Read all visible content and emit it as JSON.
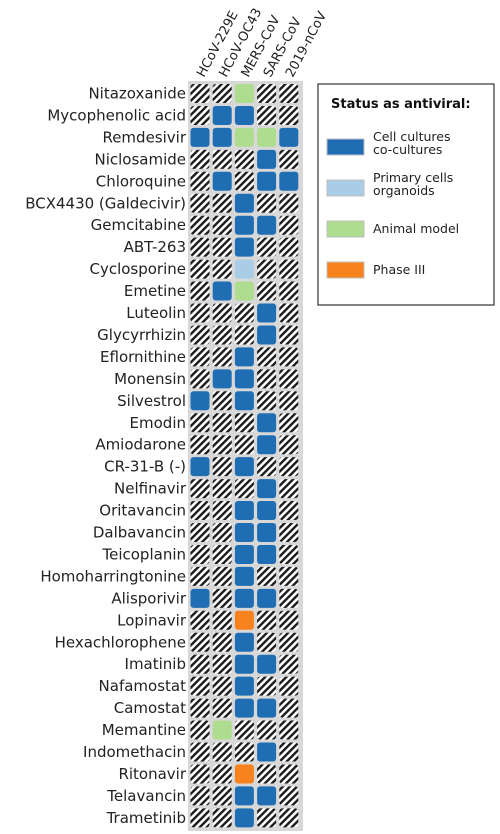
{
  "chart_data": {
    "type": "heatmap",
    "columns": [
      "HCoV-229E",
      "HCoV-OC43",
      "MERS-CoV",
      "SARS-CoV",
      "2019-nCoV"
    ],
    "rows": [
      {
        "name": "Nitazoxanide",
        "cells": [
          "untested",
          "untested",
          "animal",
          "untested",
          "untested"
        ]
      },
      {
        "name": "Mycophenolic acid",
        "cells": [
          "untested",
          "cell",
          "cell",
          "untested",
          "untested"
        ]
      },
      {
        "name": "Remdesivir",
        "cells": [
          "cell",
          "cell",
          "animal",
          "animal",
          "cell"
        ]
      },
      {
        "name": "Niclosamide",
        "cells": [
          "untested",
          "untested",
          "untested",
          "cell",
          "untested"
        ]
      },
      {
        "name": "Chloroquine",
        "cells": [
          "untested",
          "cell",
          "untested",
          "cell",
          "cell"
        ]
      },
      {
        "name": "BCX4430 (Galdecivir)",
        "cells": [
          "untested",
          "untested",
          "cell",
          "untested",
          "untested"
        ]
      },
      {
        "name": "Gemcitabine",
        "cells": [
          "untested",
          "untested",
          "cell",
          "cell",
          "untested"
        ]
      },
      {
        "name": "ABT-263",
        "cells": [
          "untested",
          "untested",
          "cell",
          "untested",
          "untested"
        ]
      },
      {
        "name": "Cyclosporine",
        "cells": [
          "untested",
          "untested",
          "primary",
          "untested",
          "untested"
        ]
      },
      {
        "name": "Emetine",
        "cells": [
          "untested",
          "cell",
          "animal",
          "untested",
          "untested"
        ]
      },
      {
        "name": "Luteolin",
        "cells": [
          "untested",
          "untested",
          "untested",
          "cell",
          "untested"
        ]
      },
      {
        "name": "Glycyrrhizin",
        "cells": [
          "untested",
          "untested",
          "untested",
          "cell",
          "untested"
        ]
      },
      {
        "name": "Eflornithine",
        "cells": [
          "untested",
          "untested",
          "cell",
          "untested",
          "untested"
        ]
      },
      {
        "name": "Monensin",
        "cells": [
          "untested",
          "cell",
          "cell",
          "untested",
          "untested"
        ]
      },
      {
        "name": "Silvestrol",
        "cells": [
          "cell",
          "untested",
          "cell",
          "untested",
          "untested"
        ]
      },
      {
        "name": "Emodin",
        "cells": [
          "untested",
          "untested",
          "untested",
          "cell",
          "untested"
        ]
      },
      {
        "name": "Amiodarone",
        "cells": [
          "untested",
          "untested",
          "untested",
          "cell",
          "untested"
        ]
      },
      {
        "name": "CR-31-B (-)",
        "cells": [
          "cell",
          "untested",
          "cell",
          "untested",
          "untested"
        ]
      },
      {
        "name": "Nelfinavir",
        "cells": [
          "untested",
          "untested",
          "untested",
          "cell",
          "untested"
        ]
      },
      {
        "name": "Oritavancin",
        "cells": [
          "untested",
          "untested",
          "cell",
          "cell",
          "untested"
        ]
      },
      {
        "name": "Dalbavancin",
        "cells": [
          "untested",
          "untested",
          "cell",
          "cell",
          "untested"
        ]
      },
      {
        "name": "Teicoplanin",
        "cells": [
          "untested",
          "untested",
          "cell",
          "cell",
          "untested"
        ]
      },
      {
        "name": "Homoharringtonine",
        "cells": [
          "untested",
          "untested",
          "cell",
          "untested",
          "untested"
        ]
      },
      {
        "name": "Alisporivir",
        "cells": [
          "cell",
          "untested",
          "cell",
          "cell",
          "untested"
        ]
      },
      {
        "name": "Lopinavir",
        "cells": [
          "untested",
          "untested",
          "phase3",
          "untested",
          "untested"
        ]
      },
      {
        "name": "Hexachlorophene",
        "cells": [
          "untested",
          "untested",
          "cell",
          "untested",
          "untested"
        ]
      },
      {
        "name": "Imatinib",
        "cells": [
          "untested",
          "untested",
          "cell",
          "cell",
          "untested"
        ]
      },
      {
        "name": "Nafamostat",
        "cells": [
          "untested",
          "untested",
          "cell",
          "untested",
          "untested"
        ]
      },
      {
        "name": "Camostat",
        "cells": [
          "untested",
          "untested",
          "cell",
          "cell",
          "untested"
        ]
      },
      {
        "name": "Memantine",
        "cells": [
          "untested",
          "animal",
          "untested",
          "untested",
          "untested"
        ]
      },
      {
        "name": "Indomethacin",
        "cells": [
          "untested",
          "untested",
          "untested",
          "cell",
          "untested"
        ]
      },
      {
        "name": "Ritonavir",
        "cells": [
          "untested",
          "untested",
          "phase3",
          "untested",
          "untested"
        ]
      },
      {
        "name": "Telavancin",
        "cells": [
          "untested",
          "untested",
          "cell",
          "cell",
          "untested"
        ]
      },
      {
        "name": "Trametinib",
        "cells": [
          "untested",
          "untested",
          "cell",
          "untested",
          "untested"
        ]
      }
    ],
    "legend": {
      "title": "Status as antiviral:",
      "placement": "right",
      "items": [
        {
          "key": "cell",
          "lines": [
            "Cell cultures",
            "co-cultures"
          ],
          "color": "#1f6eb4"
        },
        {
          "key": "primary",
          "lines": [
            "Primary cells",
            "organoids"
          ],
          "color": "#a9cde6"
        },
        {
          "key": "animal",
          "lines": [
            "Animal model"
          ],
          "color": "#aedd8f"
        },
        {
          "key": "phase3",
          "lines": [
            "Phase III"
          ],
          "color": "#f7821e"
        }
      ]
    },
    "untested_style": "diagonal-hatch"
  }
}
